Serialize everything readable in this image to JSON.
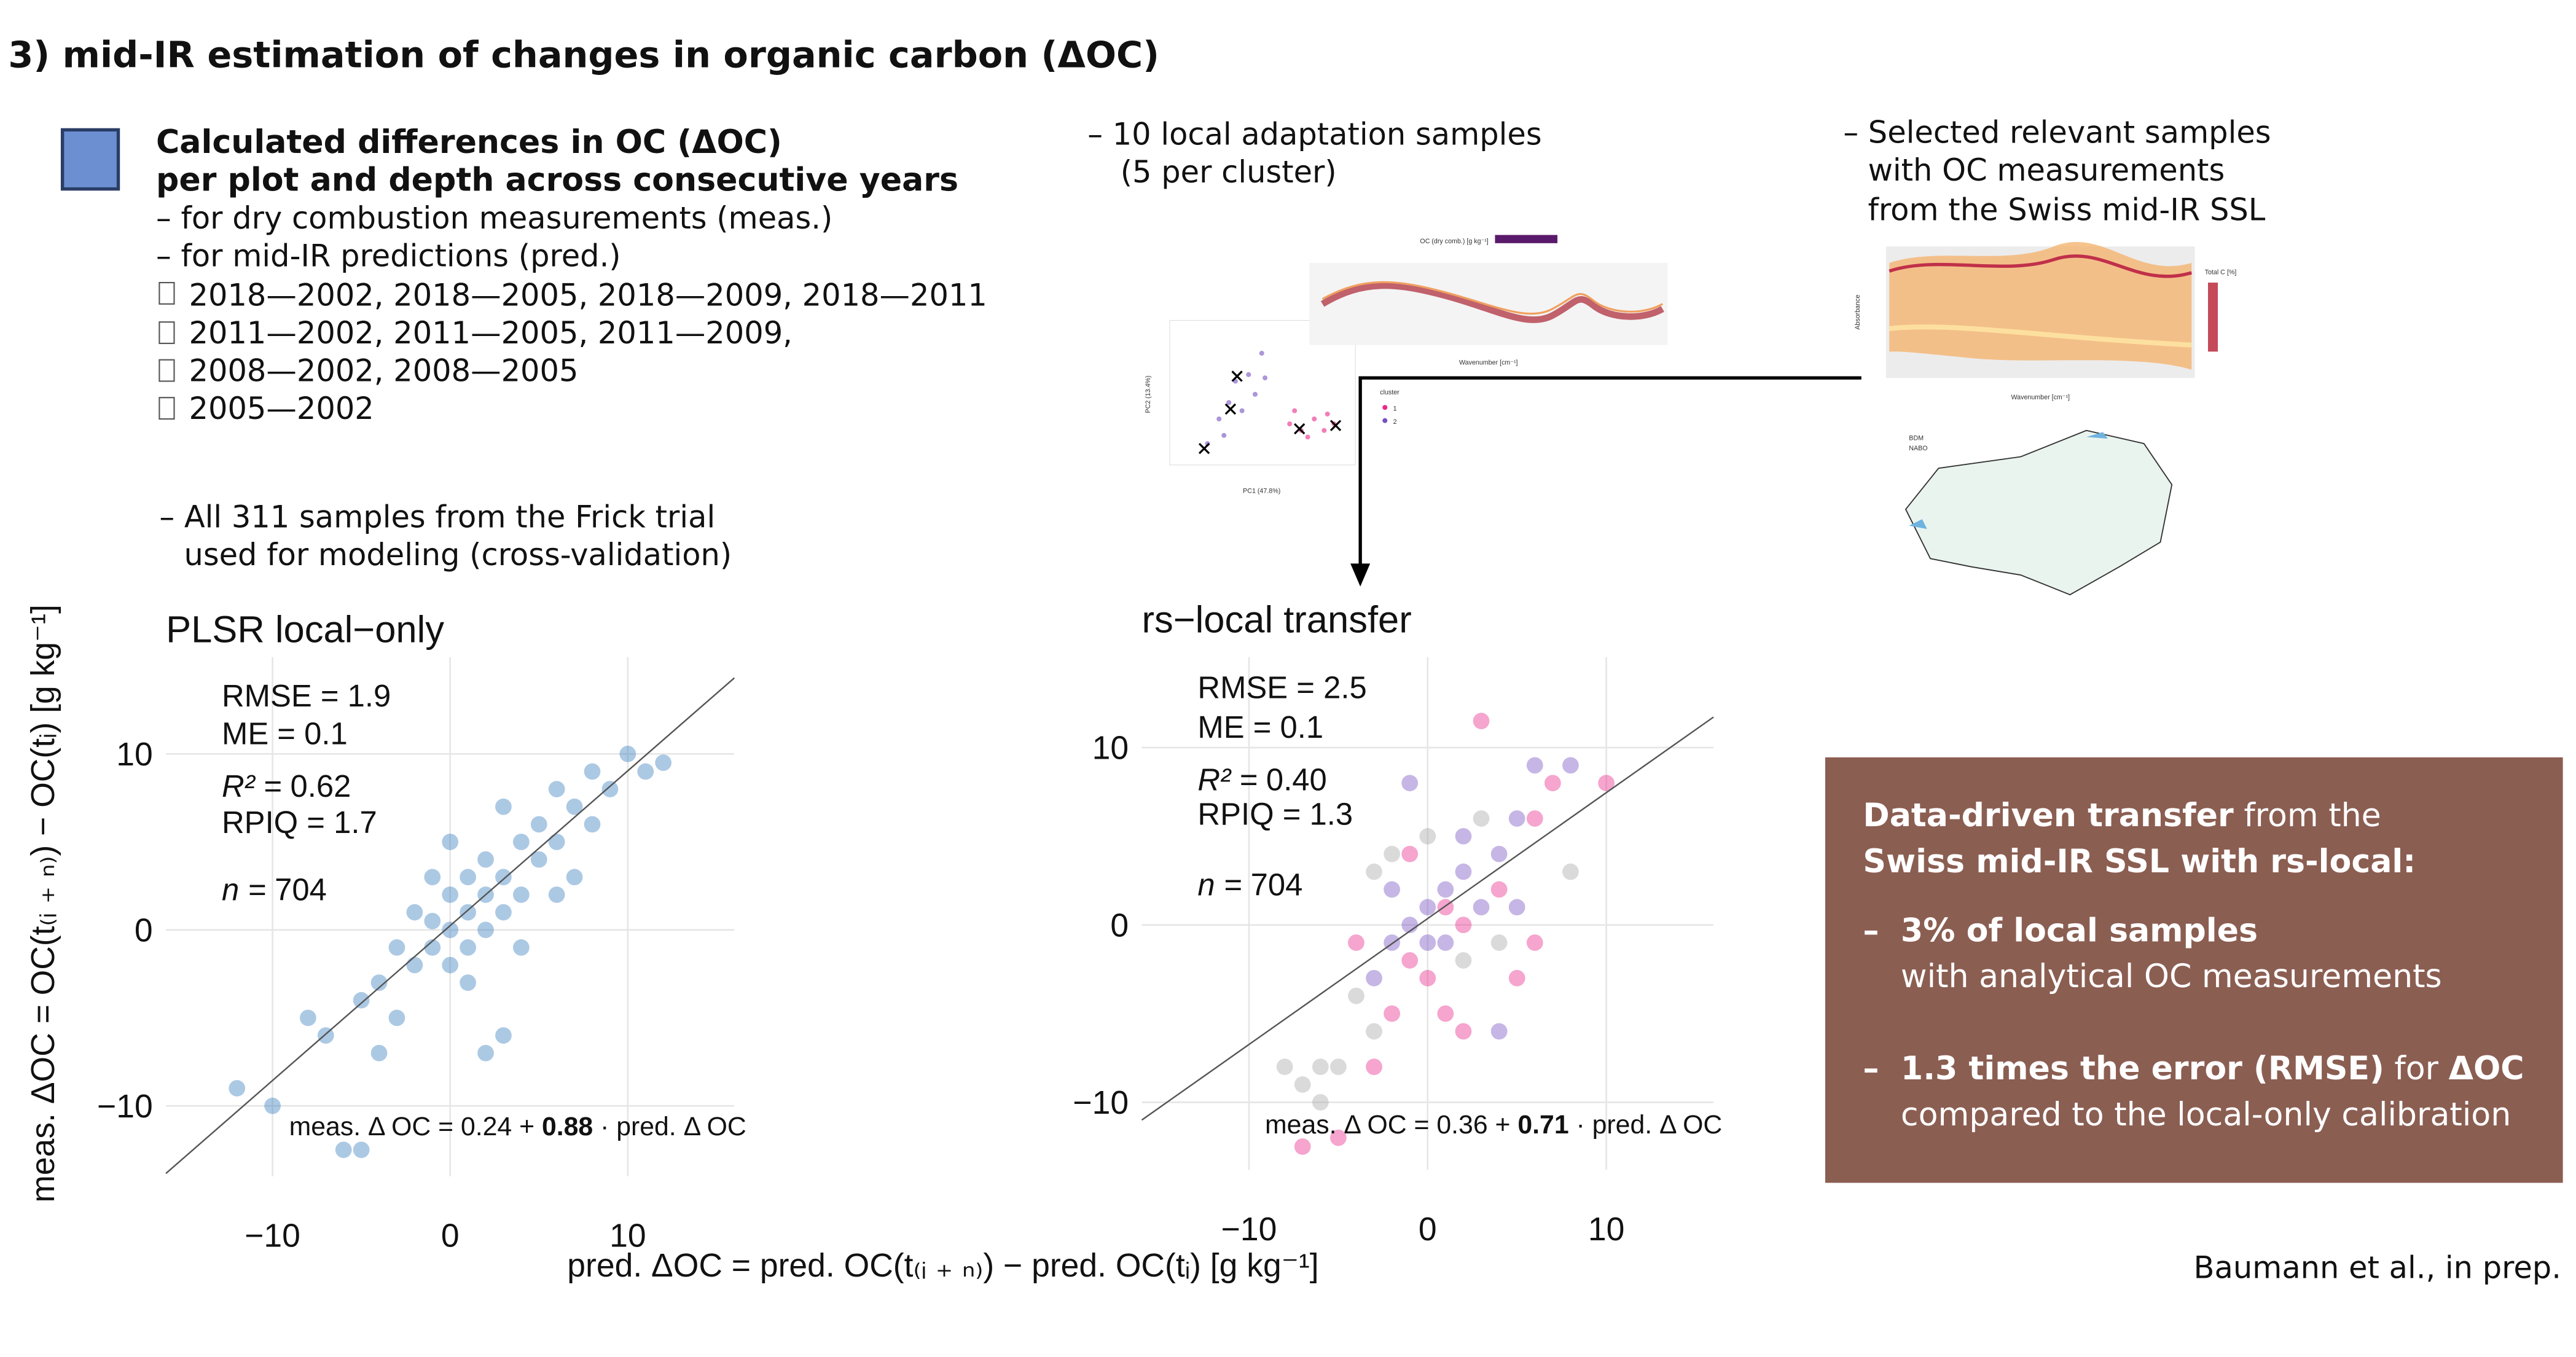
{
  "heading": "3) mid-IR estimation of changes in organic carbon (ΔOC)",
  "left_block": {
    "bold_lines": [
      "Calculated differences in OC (ΔOC)",
      "per plot and depth across consecutive years"
    ],
    "lines": [
      "– for dry combustion measurements (meas.)",
      "– for mid-IR predictions (pred.)"
    ],
    "year_pairs": [
      "2018—2002, 2018—2005, 2018—2009, 2018—2011",
      "2011—2002, 2011—2005, 2011—2009,",
      "2008—2002, 2008—2005",
      "2005—2002"
    ],
    "note": [
      "– All 311 samples from the Frick trial",
      "used for modeling (cross-validation)"
    ]
  },
  "middle_block": [
    "– 10 local adaptation samples",
    "(5 per cluster)"
  ],
  "right_block": [
    "– Selected relevant samples",
    "with OC measurements",
    "from the Swiss mid-IR SSL"
  ],
  "thumbnails": {
    "pca": [
      "PC1 (47.8%)",
      "PC2 (13.4%)",
      "cluster",
      "1",
      "2"
    ],
    "spectra": [
      "OC (dry comb.) [g kg⁻¹]",
      "Wavenumber [cm⁻¹]"
    ],
    "ssl": [
      "Absorbance",
      "Wavenumber [cm⁻¹]",
      "Total C [%]"
    ],
    "map": [
      "BDM",
      "NABO"
    ]
  },
  "axes": {
    "x_label": "pred. ΔOC = pred. OC(t₍ᵢ ₊ ₙ₎) − pred. OC(tᵢ) [g kg⁻¹]",
    "y_label": "meas. ΔOC = OC(t₍ᵢ ₊ ₙ₎) − OC(tᵢ) [g kg⁻¹]"
  },
  "chart_data": [
    {
      "type": "scatter",
      "title": "PLSR local−only",
      "stats": [
        {
          "label": "RMSE =",
          "value": 1.9
        },
        {
          "label": "ME =",
          "value": 0.1
        },
        {
          "label": "R² =",
          "value": 0.62
        },
        {
          "label": "RPIQ =",
          "value": 1.7
        },
        {
          "label": "n =",
          "value": 704
        }
      ],
      "fit": {
        "lhs": "meas. Δ OC =",
        "intercept": 0.24,
        "operator": "+",
        "slope": 0.88,
        "rhs": "· pred. Δ OC"
      },
      "xlim": [
        -16,
        16
      ],
      "ylim": [
        -14,
        15.5
      ],
      "xticks": [
        {
          "value": -10,
          "label": "−10"
        },
        0,
        10
      ],
      "yticks": [
        {
          "value": -10,
          "label": "−10"
        },
        0,
        10
      ],
      "grid": true,
      "series": [
        {
          "color": "#3a7fbf",
          "x": [
            -12,
            -10,
            -6,
            -5,
            -7,
            -5,
            -4,
            -3,
            -3,
            -2,
            -2,
            -1,
            -1,
            0,
            0,
            0,
            1,
            1,
            1,
            2,
            2,
            2,
            3,
            3,
            3,
            2,
            4,
            4,
            5,
            5,
            6,
            6,
            7,
            7,
            8,
            9,
            10,
            11,
            12,
            -4,
            1,
            -1,
            4,
            6,
            8,
            -8,
            0,
            3
          ],
          "values": [
            -9,
            -10,
            -12.5,
            -12.5,
            -6,
            -4,
            -3,
            -5,
            -1,
            -2,
            1,
            -1,
            0.5,
            0,
            2,
            -2,
            1,
            3,
            -1,
            2,
            0,
            4,
            3,
            1,
            -6,
            -7,
            5,
            2,
            4,
            6,
            5,
            8,
            7,
            3,
            9,
            8,
            10,
            9,
            9.5,
            -7,
            -3,
            3,
            -1,
            2,
            6,
            -5,
            5,
            7
          ]
        }
      ]
    },
    {
      "type": "scatter",
      "title": "rs−local transfer",
      "stats": [
        {
          "label": "RMSE =",
          "value": 2.5
        },
        {
          "label": "ME =",
          "value": 0.1
        },
        {
          "label": "R² =",
          "value": 0.4,
          "value_label": "0.40"
        },
        {
          "label": "RPIQ =",
          "value": 1.3
        },
        {
          "label": "n =",
          "value": 704
        }
      ],
      "fit": {
        "lhs": "meas. Δ OC =",
        "intercept": 0.36,
        "operator": "+",
        "slope": 0.71,
        "rhs": "· pred. Δ OC"
      },
      "xlim": [
        -16,
        16
      ],
      "ylim": [
        -13.8,
        15.1
      ],
      "xticks": [
        {
          "value": -10,
          "label": "−10"
        },
        0,
        10
      ],
      "yticks": [
        {
          "value": -10,
          "label": "−10"
        },
        0,
        10
      ],
      "grid": true,
      "series": [
        {
          "color": "#a6a6a6",
          "x": [
            -8,
            -7,
            -6,
            -6,
            -5,
            -3,
            -3,
            -2,
            0,
            2,
            4,
            8,
            3,
            -4
          ],
          "values": [
            -8,
            -9,
            -10,
            -8,
            -8,
            -6,
            3,
            4,
            5,
            -2,
            -1,
            3,
            6,
            -4
          ]
        },
        {
          "color": "#e8298a",
          "x": [
            -5,
            -7,
            -3,
            -2,
            -1,
            0,
            1,
            1,
            2,
            3,
            4,
            5,
            6,
            7,
            10,
            -4,
            2,
            -1,
            6
          ],
          "values": [
            -12,
            -12.5,
            -8,
            -5,
            -2,
            -3,
            1,
            -5,
            0,
            11.5,
            2,
            -3,
            6,
            8,
            8,
            -1,
            -6,
            4,
            -1
          ]
        },
        {
          "color": "#7650c0",
          "x": [
            -3,
            -2,
            -1,
            0,
            0,
            1,
            1,
            2,
            3,
            4,
            5,
            6,
            8,
            -1,
            2,
            4,
            -2,
            5
          ],
          "values": [
            -3,
            -1,
            0,
            1,
            -1,
            2,
            -1,
            3,
            1,
            4,
            6,
            9,
            9,
            8,
            5,
            -6,
            2,
            1
          ]
        }
      ]
    }
  ],
  "box": {
    "line1_bold": "Data-driven transfer",
    "line1_rest": "from the",
    "line2_bold": "Swiss mid-IR SSL with rs-local:",
    "bullet": "–",
    "item1_bold": "3% of local samples",
    "item1_rest": "with analytical OC measurements",
    "item2_bold": "1.3 times the error (RMSE)",
    "item2_mid": "for",
    "item2_bold2": "ΔOC",
    "item2_rest": "compared to the local-only calibration"
  },
  "citation": "Baumann et al., in prep."
}
